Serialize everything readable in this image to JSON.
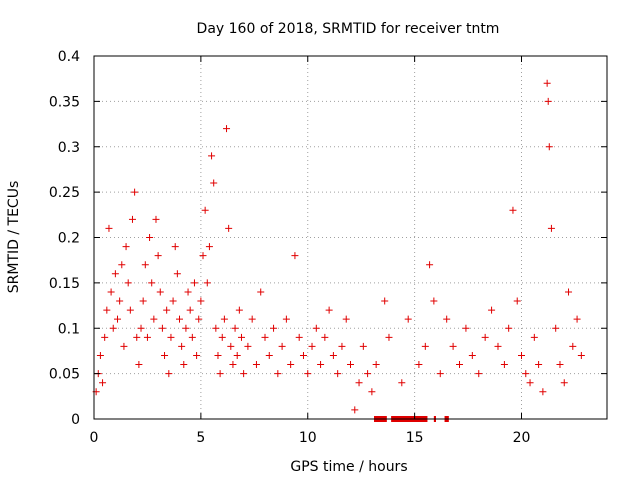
{
  "chart_data": {
    "type": "scatter",
    "title": "Day 160 of 2018, SRMTID for receiver tntm",
    "xlabel": "GPS time / hours",
    "ylabel": "SRMTID / TECUs",
    "xlim": [
      0,
      24
    ],
    "ylim": [
      0,
      0.4
    ],
    "grid": true,
    "x_ticks": [
      0,
      5,
      10,
      15,
      20
    ],
    "x_tick_labels": [
      "0",
      "5",
      "10",
      "15",
      "20"
    ],
    "y_ticks": [
      0,
      0.05,
      0.1,
      0.15,
      0.2,
      0.25,
      0.3,
      0.35,
      0.4
    ],
    "y_tick_labels": [
      "0",
      "0.05",
      "0.1",
      "0.15",
      "0.2",
      "0.25",
      "0.3",
      "0.35",
      "0.4"
    ],
    "marker": "+",
    "color": "#e00000",
    "series": [
      {
        "name": "SRMTID",
        "points": [
          [
            0.1,
            0.03
          ],
          [
            0.2,
            0.05
          ],
          [
            0.3,
            0.07
          ],
          [
            0.4,
            0.04
          ],
          [
            0.5,
            0.09
          ],
          [
            0.6,
            0.12
          ],
          [
            0.7,
            0.21
          ],
          [
            0.8,
            0.14
          ],
          [
            0.9,
            0.1
          ],
          [
            1.0,
            0.16
          ],
          [
            1.1,
            0.11
          ],
          [
            1.2,
            0.13
          ],
          [
            1.3,
            0.17
          ],
          [
            1.4,
            0.08
          ],
          [
            1.5,
            0.19
          ],
          [
            1.6,
            0.15
          ],
          [
            1.7,
            0.12
          ],
          [
            1.8,
            0.22
          ],
          [
            1.9,
            0.25
          ],
          [
            2.0,
            0.09
          ],
          [
            2.1,
            0.06
          ],
          [
            2.2,
            0.1
          ],
          [
            2.3,
            0.13
          ],
          [
            2.4,
            0.17
          ],
          [
            2.5,
            0.09
          ],
          [
            2.6,
            0.2
          ],
          [
            2.7,
            0.15
          ],
          [
            2.8,
            0.11
          ],
          [
            2.9,
            0.22
          ],
          [
            3.0,
            0.18
          ],
          [
            3.1,
            0.14
          ],
          [
            3.2,
            0.1
          ],
          [
            3.3,
            0.07
          ],
          [
            3.4,
            0.12
          ],
          [
            3.5,
            0.05
          ],
          [
            3.6,
            0.09
          ],
          [
            3.7,
            0.13
          ],
          [
            3.8,
            0.19
          ],
          [
            3.9,
            0.16
          ],
          [
            4.0,
            0.11
          ],
          [
            4.1,
            0.08
          ],
          [
            4.2,
            0.06
          ],
          [
            4.3,
            0.1
          ],
          [
            4.4,
            0.14
          ],
          [
            4.5,
            0.12
          ],
          [
            4.6,
            0.09
          ],
          [
            4.7,
            0.15
          ],
          [
            4.8,
            0.07
          ],
          [
            4.9,
            0.11
          ],
          [
            5.0,
            0.13
          ],
          [
            5.1,
            0.18
          ],
          [
            5.2,
            0.23
          ],
          [
            5.3,
            0.15
          ],
          [
            5.4,
            0.19
          ],
          [
            5.5,
            0.29
          ],
          [
            5.6,
            0.26
          ],
          [
            5.7,
            0.1
          ],
          [
            5.8,
            0.07
          ],
          [
            5.9,
            0.05
          ],
          [
            6.0,
            0.09
          ],
          [
            6.1,
            0.11
          ],
          [
            6.2,
            0.32
          ],
          [
            6.3,
            0.21
          ],
          [
            6.4,
            0.08
          ],
          [
            6.5,
            0.06
          ],
          [
            6.6,
            0.1
          ],
          [
            6.7,
            0.07
          ],
          [
            6.8,
            0.12
          ],
          [
            6.9,
            0.09
          ],
          [
            7.0,
            0.05
          ],
          [
            7.2,
            0.08
          ],
          [
            7.4,
            0.11
          ],
          [
            7.6,
            0.06
          ],
          [
            7.8,
            0.14
          ],
          [
            8.0,
            0.09
          ],
          [
            8.2,
            0.07
          ],
          [
            8.4,
            0.1
          ],
          [
            8.6,
            0.05
          ],
          [
            8.8,
            0.08
          ],
          [
            9.0,
            0.11
          ],
          [
            9.2,
            0.06
          ],
          [
            9.4,
            0.18
          ],
          [
            9.6,
            0.09
          ],
          [
            9.8,
            0.07
          ],
          [
            10.0,
            0.05
          ],
          [
            10.2,
            0.08
          ],
          [
            10.4,
            0.1
          ],
          [
            10.6,
            0.06
          ],
          [
            10.8,
            0.09
          ],
          [
            11.0,
            0.12
          ],
          [
            11.2,
            0.07
          ],
          [
            11.4,
            0.05
          ],
          [
            11.6,
            0.08
          ],
          [
            11.8,
            0.11
          ],
          [
            12.0,
            0.06
          ],
          [
            12.2,
            0.01
          ],
          [
            12.4,
            0.04
          ],
          [
            12.6,
            0.08
          ],
          [
            12.8,
            0.05
          ],
          [
            13.0,
            0.03
          ],
          [
            13.2,
            0.06
          ],
          [
            13.6,
            0.13
          ],
          [
            13.8,
            0.09
          ],
          [
            14.4,
            0.04
          ],
          [
            14.7,
            0.11
          ],
          [
            15.2,
            0.06
          ],
          [
            15.5,
            0.08
          ],
          [
            15.7,
            0.17
          ],
          [
            15.9,
            0.13
          ],
          [
            16.2,
            0.05
          ],
          [
            16.5,
            0.11
          ],
          [
            16.8,
            0.08
          ],
          [
            17.1,
            0.06
          ],
          [
            17.4,
            0.1
          ],
          [
            17.7,
            0.07
          ],
          [
            18.0,
            0.05
          ],
          [
            18.3,
            0.09
          ],
          [
            18.6,
            0.12
          ],
          [
            18.9,
            0.08
          ],
          [
            19.2,
            0.06
          ],
          [
            19.4,
            0.1
          ],
          [
            19.6,
            0.23
          ],
          [
            19.8,
            0.13
          ],
          [
            20.0,
            0.07
          ],
          [
            20.2,
            0.05
          ],
          [
            20.4,
            0.04
          ],
          [
            20.6,
            0.09
          ],
          [
            20.8,
            0.06
          ],
          [
            21.0,
            0.03
          ],
          [
            21.2,
            0.37
          ],
          [
            21.25,
            0.35
          ],
          [
            21.3,
            0.3
          ],
          [
            21.4,
            0.21
          ],
          [
            21.6,
            0.1
          ],
          [
            21.8,
            0.06
          ],
          [
            22.0,
            0.04
          ],
          [
            22.2,
            0.14
          ],
          [
            22.4,
            0.08
          ],
          [
            22.6,
            0.11
          ],
          [
            22.8,
            0.07
          ]
        ]
      }
    ],
    "zero_value_segments": [
      [
        13.1,
        13.7
      ],
      [
        13.9,
        15.6
      ],
      [
        15.9,
        16.0
      ],
      [
        16.4,
        16.6
      ]
    ]
  }
}
